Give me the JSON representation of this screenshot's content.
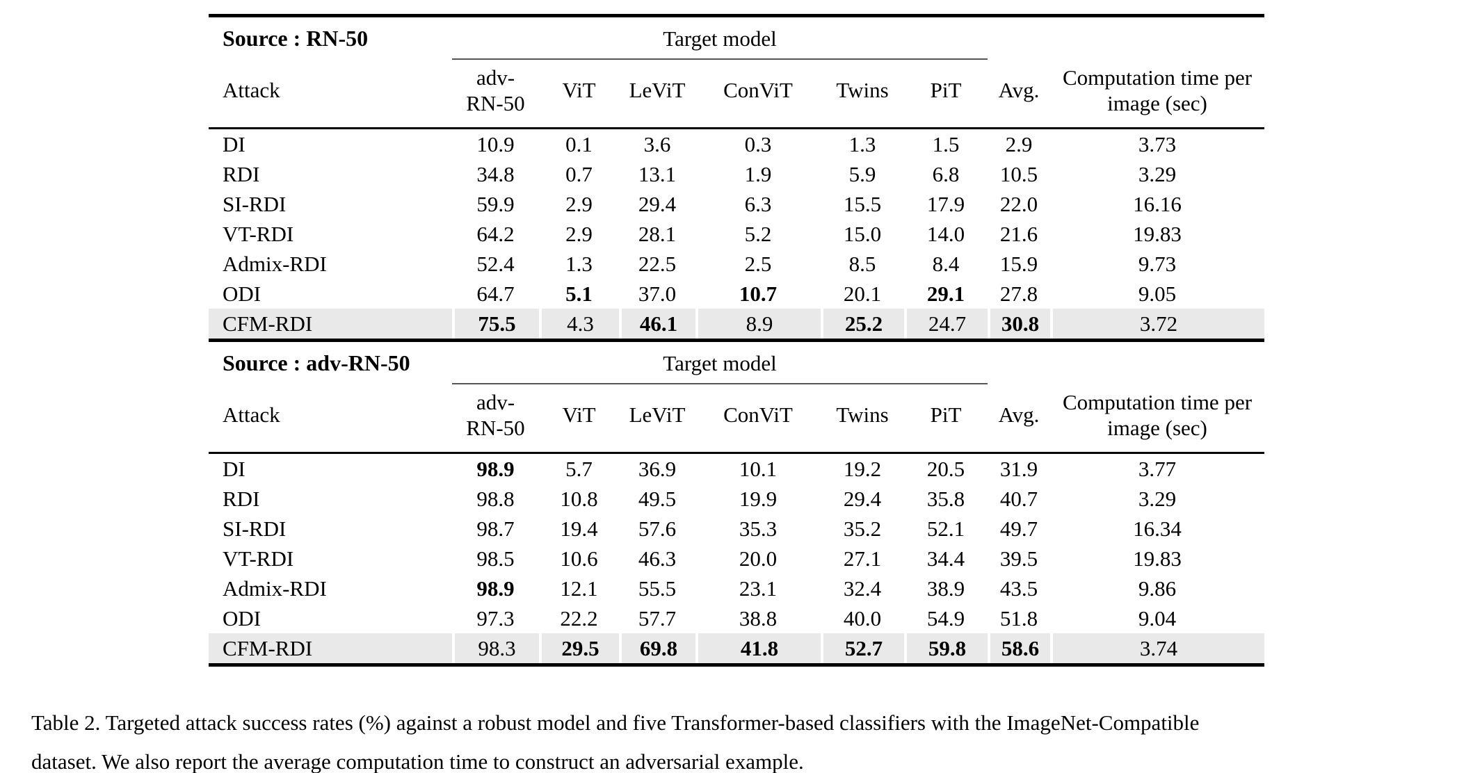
{
  "page": {
    "background": "#ffffff",
    "text_color": "#000000",
    "highlight_color": "#e9e9e9"
  },
  "columns": [
    "Attack",
    "adv-RN-50",
    "ViT",
    "LeViT",
    "ConViT",
    "Twins",
    "PiT",
    "Avg.",
    "Computation time per image (sec)"
  ],
  "tables": [
    {
      "source_label": "Source : RN-50",
      "target_model_label": "Target model",
      "rows": [
        {
          "attack": "DI",
          "values": [
            "10.9",
            "0.1",
            "3.6",
            "0.3",
            "1.3",
            "1.5",
            "2.9",
            "3.73"
          ],
          "bold": [],
          "highlight": false
        },
        {
          "attack": "RDI",
          "values": [
            "34.8",
            "0.7",
            "13.1",
            "1.9",
            "5.9",
            "6.8",
            "10.5",
            "3.29"
          ],
          "bold": [],
          "highlight": false
        },
        {
          "attack": "SI-RDI",
          "values": [
            "59.9",
            "2.9",
            "29.4",
            "6.3",
            "15.5",
            "17.9",
            "22.0",
            "16.16"
          ],
          "bold": [],
          "highlight": false
        },
        {
          "attack": "VT-RDI",
          "values": [
            "64.2",
            "2.9",
            "28.1",
            "5.2",
            "15.0",
            "14.0",
            "21.6",
            "19.83"
          ],
          "bold": [],
          "highlight": false
        },
        {
          "attack": "Admix-RDI",
          "values": [
            "52.4",
            "1.3",
            "22.5",
            "2.5",
            "8.5",
            "8.4",
            "15.9",
            "9.73"
          ],
          "bold": [],
          "highlight": false
        },
        {
          "attack": "ODI",
          "values": [
            "64.7",
            "5.1",
            "37.0",
            "10.7",
            "20.1",
            "29.1",
            "27.8",
            "9.05"
          ],
          "bold": [
            1,
            3,
            5
          ],
          "highlight": false
        },
        {
          "attack": "CFM-RDI",
          "values": [
            "75.5",
            "4.3",
            "46.1",
            "8.9",
            "25.2",
            "24.7",
            "30.8",
            "3.72"
          ],
          "bold": [
            0,
            2,
            4,
            6
          ],
          "highlight": true
        }
      ]
    },
    {
      "source_label": "Source : adv-RN-50",
      "target_model_label": "Target model",
      "rows": [
        {
          "attack": "DI",
          "values": [
            "98.9",
            "5.7",
            "36.9",
            "10.1",
            "19.2",
            "20.5",
            "31.9",
            "3.77"
          ],
          "bold": [
            0
          ],
          "highlight": false
        },
        {
          "attack": "RDI",
          "values": [
            "98.8",
            "10.8",
            "49.5",
            "19.9",
            "29.4",
            "35.8",
            "40.7",
            "3.29"
          ],
          "bold": [],
          "highlight": false
        },
        {
          "attack": "SI-RDI",
          "values": [
            "98.7",
            "19.4",
            "57.6",
            "35.3",
            "35.2",
            "52.1",
            "49.7",
            "16.34"
          ],
          "bold": [],
          "highlight": false
        },
        {
          "attack": "VT-RDI",
          "values": [
            "98.5",
            "10.6",
            "46.3",
            "20.0",
            "27.1",
            "34.4",
            "39.5",
            "19.83"
          ],
          "bold": [],
          "highlight": false
        },
        {
          "attack": "Admix-RDI",
          "values": [
            "98.9",
            "12.1",
            "55.5",
            "23.1",
            "32.4",
            "38.9",
            "43.5",
            "9.86"
          ],
          "bold": [
            0
          ],
          "highlight": false
        },
        {
          "attack": "ODI",
          "values": [
            "97.3",
            "22.2",
            "57.7",
            "38.8",
            "40.0",
            "54.9",
            "51.8",
            "9.04"
          ],
          "bold": [],
          "highlight": false
        },
        {
          "attack": "CFM-RDI",
          "values": [
            "98.3",
            "29.5",
            "69.8",
            "41.8",
            "52.7",
            "59.8",
            "58.6",
            "3.74"
          ],
          "bold": [
            1,
            2,
            3,
            4,
            5,
            6
          ],
          "highlight": true
        }
      ]
    }
  ],
  "caption": {
    "line1": "Table 2. Targeted attack success rates (%) against a robust model and five Transformer-based classifiers with the ImageNet-Compatible",
    "line2": "dataset. We also report the average computation time to construct an adversarial example."
  }
}
